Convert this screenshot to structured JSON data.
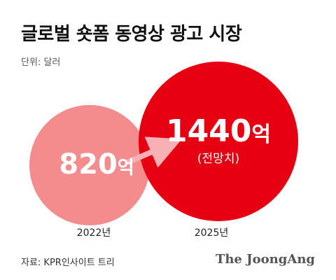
{
  "header": {
    "title": "글로벌 숏폼 동영상 광고 시장",
    "unit": "단위: 달러"
  },
  "chart_data": {
    "type": "bubble",
    "title": "글로벌 숏폼 동영상 광고 시장",
    "unit": "단위: 달러",
    "categories": [
      "2022년",
      "2025년"
    ],
    "values": [
      820,
      1440
    ],
    "value_labels": [
      "820",
      "1440"
    ],
    "value_suffix": "억",
    "annotations": [
      "(전망치)"
    ],
    "colors": [
      "#f48c8e",
      "#e60012"
    ],
    "arrow_color": "#f7b0b3"
  },
  "footer": {
    "source": "자료: KPR인사이트 트리",
    "brand": "The JoongAng"
  }
}
